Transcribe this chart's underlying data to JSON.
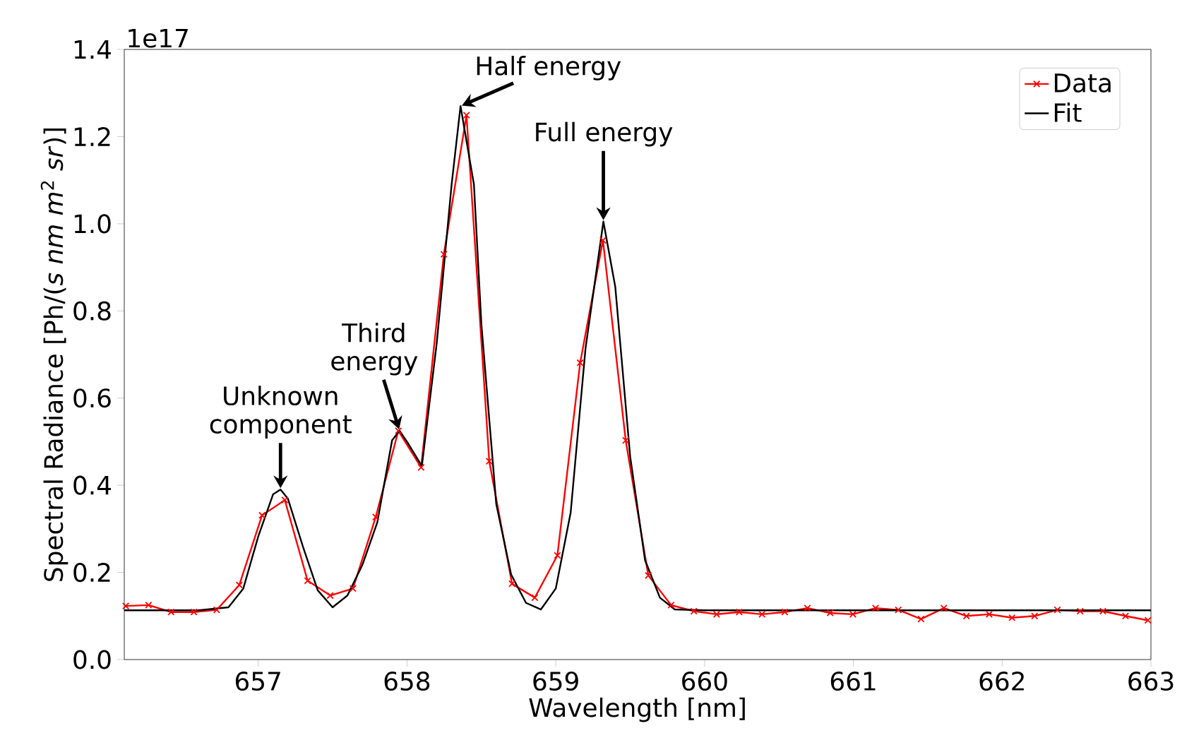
{
  "chart_data": {
    "type": "line",
    "xlabel": "Wavelength [nm]",
    "ylabel": "Spectral Radiance [Ph/(*s nm m*$^{2}$ *sr*)]",
    "xlim": [
      656.1,
      663
    ],
    "xticks": [
      657,
      658,
      659,
      660,
      661,
      662,
      663
    ],
    "ylim": [
      0,
      1.4
    ],
    "yticks": [
      {
        "value": 0,
        "label": "0.0"
      },
      {
        "value": 0.2,
        "label": "0.2"
      },
      {
        "value": 0.4,
        "label": "0.4"
      },
      {
        "value": 0.6,
        "label": "0.6"
      },
      {
        "value": 0.8,
        "label": "0.8"
      },
      {
        "value": 1.0,
        "label": "1.0"
      },
      {
        "value": 1.2,
        "label": "1.2"
      },
      {
        "value": 1.4,
        "label": "1.4"
      }
    ],
    "grid": false,
    "legend": "top right",
    "series": [
      {
        "name": "Data",
        "color": "#ff0000",
        "marker": "cross",
        "line_style": "solid",
        "x": [
          656.11,
          656.263,
          656.415,
          656.568,
          656.721,
          656.873,
          657.026,
          657.179,
          657.332,
          657.484,
          657.637,
          657.79,
          657.942,
          658.095,
          658.248,
          658.4,
          658.553,
          658.706,
          658.859,
          659.011,
          659.164,
          659.317,
          659.47,
          659.622,
          659.775,
          659.928,
          660.081,
          660.233,
          660.386,
          660.539,
          660.691,
          660.844,
          660.997,
          661.149,
          661.302,
          661.455,
          661.608,
          661.76,
          661.913,
          662.066,
          662.218,
          662.371,
          662.524,
          662.677,
          662.829,
          662.98
        ],
        "values": [
          0.123,
          0.125,
          0.109,
          0.109,
          0.114,
          0.171,
          0.331,
          0.366,
          0.181,
          0.147,
          0.163,
          0.327,
          0.525,
          0.441,
          0.93,
          1.249,
          0.455,
          0.174,
          0.142,
          0.239,
          0.681,
          0.962,
          0.503,
          0.193,
          0.125,
          0.111,
          0.104,
          0.109,
          0.104,
          0.109,
          0.118,
          0.107,
          0.104,
          0.118,
          0.114,
          0.093,
          0.118,
          0.1,
          0.104,
          0.096,
          0.1,
          0.114,
          0.111,
          0.111,
          0.1,
          0.09
        ]
      },
      {
        "name": "Fit",
        "color": "#000000",
        "marker": "none",
        "line_style": "solid",
        "x": [
          656.1,
          656.6,
          656.8,
          656.9,
          657.0,
          657.1,
          657.15,
          657.2,
          657.3,
          657.4,
          657.5,
          657.6,
          657.7,
          657.8,
          657.9,
          657.95,
          658.0,
          658.1,
          658.2,
          658.3,
          658.36,
          658.45,
          658.5,
          658.6,
          658.7,
          658.8,
          658.9,
          659.0,
          659.1,
          659.2,
          659.32,
          659.4,
          659.5,
          659.6,
          659.7,
          659.8,
          660.0,
          663.0
        ],
        "values": [
          0.113,
          0.113,
          0.12,
          0.163,
          0.282,
          0.379,
          0.39,
          0.369,
          0.26,
          0.159,
          0.12,
          0.147,
          0.217,
          0.314,
          0.503,
          0.525,
          0.5,
          0.444,
          0.726,
          1.09,
          1.27,
          1.09,
          0.77,
          0.357,
          0.195,
          0.13,
          0.115,
          0.163,
          0.337,
          0.714,
          1.005,
          0.855,
          0.466,
          0.228,
          0.142,
          0.115,
          0.113,
          0.113
        ]
      }
    ],
    "annotations": [
      {
        "text": "Unknown component",
        "x": 657.15,
        "y": 0.39
      },
      {
        "text": "Third energy",
        "x": 657.95,
        "y": 0.525
      },
      {
        "text": "Half energy",
        "x": 658.36,
        "y": 1.27
      },
      {
        "text": "Full energy",
        "x": 659.32,
        "y": 1.005
      },
      "1e17"
    ]
  }
}
